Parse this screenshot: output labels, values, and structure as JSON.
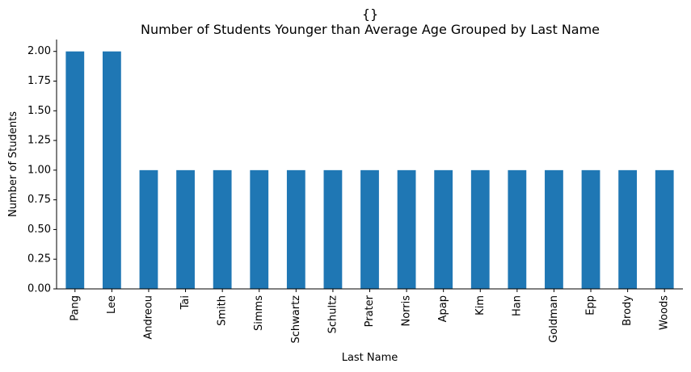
{
  "chart_data": {
    "type": "bar",
    "title_line1": "{}",
    "title": "Number of Students Younger than Average Age Grouped by Last Name",
    "xlabel": "Last Name",
    "ylabel": "Number of Students",
    "categories": [
      "Pang",
      "Lee",
      "Andreou",
      "Tai",
      "Smith",
      "Simms",
      "Schwartz",
      "Schultz",
      "Prater",
      "Norris",
      "Apap",
      "Kim",
      "Han",
      "Goldman",
      "Epp",
      "Brody",
      "Woods"
    ],
    "values": [
      2,
      2,
      1,
      1,
      1,
      1,
      1,
      1,
      1,
      1,
      1,
      1,
      1,
      1,
      1,
      1,
      1
    ],
    "yticks": [
      "0.00",
      "0.25",
      "0.50",
      "0.75",
      "1.00",
      "1.25",
      "1.50",
      "1.75",
      "2.00"
    ],
    "ylim": [
      0,
      2.1
    ],
    "grid": false,
    "legend": "none",
    "bar_color": "#1f77b4",
    "spines": "left-bottom"
  }
}
